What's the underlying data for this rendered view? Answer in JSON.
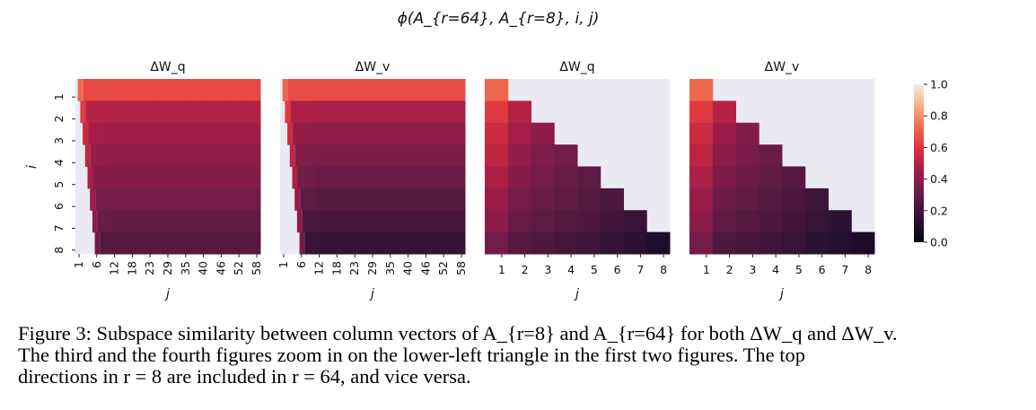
{
  "suptitle": "ϕ(A_{r=64}, A_{r=8}, i, j)",
  "chart_data": [
    {
      "type": "heatmap",
      "title": "ΔW_q",
      "xlabel": "j",
      "ylabel": "i",
      "y_ticks": [
        "1",
        "2",
        "3",
        "4",
        "5",
        "6",
        "7",
        "8"
      ],
      "x_ticks": [
        "1",
        "6",
        "12",
        "18",
        "23",
        "29",
        "35",
        "40",
        "46",
        "52",
        "58"
      ],
      "n_cols": 64,
      "vmin": 0,
      "vmax": 1,
      "values": [
        [
          0.72,
          0.65,
          0.65,
          0.65,
          0.65,
          0.65,
          0.65,
          0.65,
          0.65,
          0.65,
          0.65
        ],
        [
          0.62,
          0.5,
          0.49,
          0.49,
          0.49,
          0.49,
          0.49,
          0.49,
          0.49,
          0.49,
          0.49
        ],
        [
          0.56,
          0.46,
          0.45,
          0.45,
          0.45,
          0.45,
          0.45,
          0.45,
          0.45,
          0.45,
          0.45
        ],
        [
          0.52,
          0.42,
          0.41,
          0.41,
          0.41,
          0.41,
          0.41,
          0.41,
          0.41,
          0.41,
          0.41
        ],
        [
          0.48,
          0.38,
          0.38,
          0.38,
          0.38,
          0.38,
          0.38,
          0.38,
          0.38,
          0.38,
          0.38
        ],
        [
          0.44,
          0.34,
          0.34,
          0.34,
          0.34,
          0.34,
          0.34,
          0.34,
          0.34,
          0.34,
          0.34
        ],
        [
          0.4,
          0.31,
          0.3,
          0.3,
          0.3,
          0.3,
          0.3,
          0.3,
          0.3,
          0.3,
          0.3
        ],
        [
          0.34,
          0.26,
          0.26,
          0.26,
          0.26,
          0.26,
          0.26,
          0.26,
          0.26,
          0.26,
          0.26
        ]
      ]
    },
    {
      "type": "heatmap",
      "title": "ΔW_v",
      "xlabel": "j",
      "ylabel": "",
      "y_ticks": [],
      "x_ticks": [
        "1",
        "6",
        "12",
        "18",
        "23",
        "29",
        "35",
        "40",
        "46",
        "52",
        "58"
      ],
      "n_cols": 64,
      "vmin": 0,
      "vmax": 1,
      "values": [
        [
          0.72,
          0.66,
          0.66,
          0.66,
          0.66,
          0.66,
          0.66,
          0.66,
          0.66,
          0.66,
          0.66
        ],
        [
          0.62,
          0.48,
          0.47,
          0.47,
          0.47,
          0.47,
          0.47,
          0.47,
          0.47,
          0.47,
          0.47
        ],
        [
          0.56,
          0.42,
          0.41,
          0.41,
          0.41,
          0.41,
          0.41,
          0.41,
          0.41,
          0.41,
          0.41
        ],
        [
          0.52,
          0.37,
          0.36,
          0.36,
          0.36,
          0.36,
          0.36,
          0.36,
          0.36,
          0.36,
          0.36
        ],
        [
          0.48,
          0.33,
          0.32,
          0.32,
          0.32,
          0.32,
          0.32,
          0.32,
          0.32,
          0.32,
          0.32
        ],
        [
          0.44,
          0.28,
          0.27,
          0.27,
          0.27,
          0.27,
          0.27,
          0.27,
          0.27,
          0.27,
          0.27
        ],
        [
          0.4,
          0.23,
          0.22,
          0.22,
          0.22,
          0.22,
          0.22,
          0.22,
          0.22,
          0.22,
          0.22
        ],
        [
          0.34,
          0.18,
          0.17,
          0.17,
          0.17,
          0.17,
          0.17,
          0.17,
          0.17,
          0.17,
          0.17
        ]
      ]
    },
    {
      "type": "heatmap",
      "title": "ΔW_q",
      "xlabel": "j",
      "ylabel": "",
      "y_ticks": [],
      "x_ticks": [
        "1",
        "2",
        "3",
        "4",
        "5",
        "6",
        "7",
        "8"
      ],
      "n_cols": 8,
      "vmin": 0,
      "vmax": 1,
      "values": [
        [
          0.72,
          null,
          null,
          null,
          null,
          null,
          null,
          null
        ],
        [
          0.62,
          0.5,
          null,
          null,
          null,
          null,
          null,
          null
        ],
        [
          0.56,
          0.46,
          0.4,
          null,
          null,
          null,
          null,
          null
        ],
        [
          0.52,
          0.42,
          0.37,
          0.34,
          null,
          null,
          null,
          null
        ],
        [
          0.48,
          0.38,
          0.34,
          0.31,
          0.28,
          null,
          null,
          null
        ],
        [
          0.44,
          0.34,
          0.31,
          0.29,
          0.26,
          0.23,
          null,
          null
        ],
        [
          0.4,
          0.31,
          0.28,
          0.26,
          0.24,
          0.21,
          0.18,
          null
        ],
        [
          0.34,
          0.26,
          0.24,
          0.22,
          0.2,
          0.17,
          0.14,
          0.1
        ]
      ]
    },
    {
      "type": "heatmap",
      "title": "ΔW_v",
      "xlabel": "j",
      "ylabel": "",
      "y_ticks": [],
      "x_ticks": [
        "1",
        "2",
        "3",
        "4",
        "5",
        "6",
        "7",
        "8"
      ],
      "n_cols": 8,
      "vmin": 0,
      "vmax": 1,
      "values": [
        [
          0.72,
          null,
          null,
          null,
          null,
          null,
          null,
          null
        ],
        [
          0.62,
          0.5,
          null,
          null,
          null,
          null,
          null,
          null
        ],
        [
          0.56,
          0.44,
          0.38,
          null,
          null,
          null,
          null,
          null
        ],
        [
          0.52,
          0.4,
          0.35,
          0.32,
          null,
          null,
          null,
          null
        ],
        [
          0.48,
          0.36,
          0.32,
          0.29,
          0.26,
          null,
          null,
          null
        ],
        [
          0.44,
          0.32,
          0.29,
          0.26,
          0.23,
          0.2,
          null,
          null
        ],
        [
          0.4,
          0.29,
          0.26,
          0.24,
          0.21,
          0.18,
          0.15,
          null
        ],
        [
          0.34,
          0.24,
          0.22,
          0.2,
          0.18,
          0.15,
          0.12,
          0.09
        ]
      ]
    }
  ],
  "colorbar": {
    "ticks": [
      "1.0",
      "0.8",
      "0.6",
      "0.4",
      "0.2",
      "0.0"
    ],
    "range": [
      0,
      1
    ]
  },
  "caption": {
    "line1": "Figure 3: Subspace similarity between column vectors of A_{r=8} and A_{r=64} for both ΔW_q and ΔW_v.",
    "line2": "The third and the fourth figures zoom in on the lower-left triangle in the first two figures. The top",
    "line3": "directions in r = 8 are included in r = 64, and vice versa."
  },
  "empty_color": "#ebeaf2"
}
